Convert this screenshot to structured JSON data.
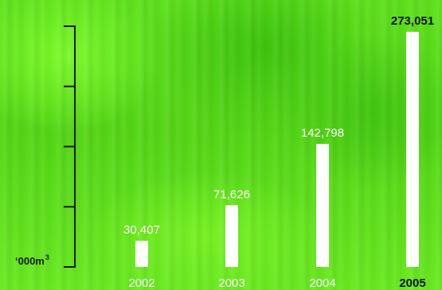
{
  "chart_data": {
    "type": "bar",
    "categories": [
      "2002",
      "2003",
      "2004",
      "2005"
    ],
    "values": [
      30407,
      71626,
      142798,
      273051
    ],
    "value_labels": [
      "30,407",
      "71,626",
      "142,798",
      "273,051"
    ],
    "highlight_category": "2005",
    "unit_label": "‘000m",
    "unit_superscript": "3",
    "ylim": [
      0,
      273051
    ],
    "axis_ticks": 5,
    "title": "",
    "xlabel": "",
    "ylabel": "",
    "colors": {
      "bar": "#ffffff",
      "label": "#ffffff",
      "highlight_label": "#111111",
      "axis": "#1a1a1a"
    }
  }
}
